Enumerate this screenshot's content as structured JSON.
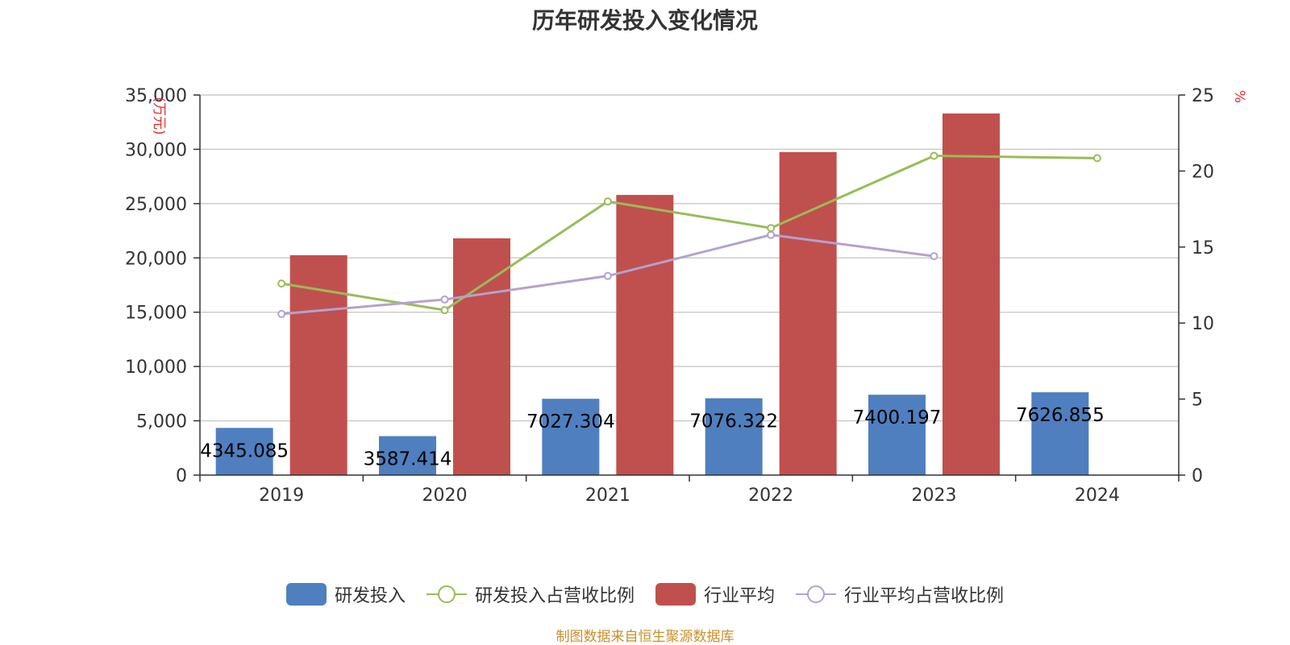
{
  "chart_data": {
    "type": "bar",
    "title": "历年研发投入变化情况",
    "categories": [
      "2019",
      "2020",
      "2021",
      "2022",
      "2023",
      "2024"
    ],
    "y_left": {
      "label": "(万元)",
      "ylim": [
        0,
        35000
      ],
      "ticks": [
        0,
        5000,
        10000,
        15000,
        20000,
        25000,
        30000,
        35000
      ],
      "tick_labels": [
        "0",
        "5,000",
        "10,000",
        "15,000",
        "20,000",
        "25,000",
        "30,000",
        "35,000"
      ]
    },
    "y_right": {
      "label": "%",
      "ylim": [
        0,
        25
      ],
      "ticks": [
        0,
        5,
        10,
        15,
        20,
        25
      ],
      "tick_labels": [
        "0",
        "5",
        "10",
        "15",
        "20",
        "25"
      ]
    },
    "grid": true,
    "legend_position": "bottom",
    "series": [
      {
        "name": "研发投入",
        "type": "bar",
        "axis": "left",
        "color": "#4f7fbf",
        "values": [
          4345.085,
          3587.414,
          7027.304,
          7076.322,
          7400.197,
          7626.855
        ],
        "data_labels": [
          "4345.085",
          "3587.414",
          "7027.304",
          "7076.322",
          "7400.197",
          "7626.855"
        ]
      },
      {
        "name": "研发投入占营收比例",
        "type": "line",
        "axis": "right",
        "color": "#9bbb59",
        "values": [
          12.6,
          10.85,
          18.0,
          16.25,
          21.0,
          20.85
        ]
      },
      {
        "name": "行业平均",
        "type": "bar",
        "axis": "left",
        "color": "#c0504d",
        "values": [
          20250,
          21800,
          25800,
          29750,
          33300,
          null
        ]
      },
      {
        "name": "行业平均占营收比例",
        "type": "line",
        "axis": "right",
        "color": "#b3a2cf",
        "values": [
          10.6,
          11.55,
          13.1,
          15.8,
          14.4,
          null
        ]
      }
    ]
  },
  "source_note": "制图数据来自恒生聚源数据库",
  "colors": {
    "title": "#333333",
    "axis_unit": "#e03030",
    "source_note": "#c8902a",
    "grid": "#cccccc",
    "axis": "#333333"
  }
}
